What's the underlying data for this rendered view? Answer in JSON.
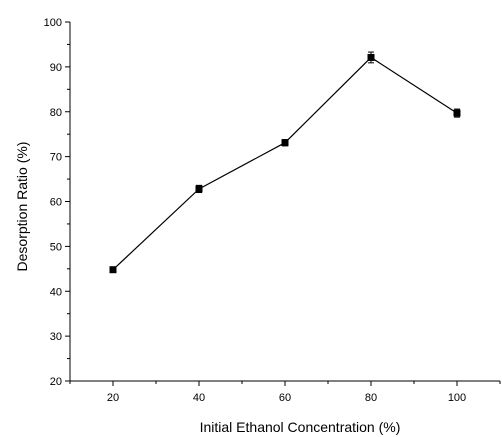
{
  "chart_data": {
    "type": "line",
    "xlabel": "Initial Ethanol Concentration (%)",
    "ylabel": "Desorption Ratio (%)",
    "xlim": [
      10,
      110
    ],
    "ylim": [
      20,
      100
    ],
    "xticks": [
      20,
      40,
      60,
      80,
      100
    ],
    "yticks": [
      20,
      30,
      40,
      50,
      60,
      70,
      80,
      90,
      100
    ],
    "grid": false,
    "x": [
      20,
      40,
      60,
      80,
      100
    ],
    "series": [
      {
        "values": [
          44.8,
          62.8,
          73.1,
          92.1,
          79.7
        ],
        "errors": [
          0.6,
          0.8,
          0.7,
          1.2,
          0.9
        ],
        "marker": "square",
        "color": "#000000"
      }
    ]
  }
}
